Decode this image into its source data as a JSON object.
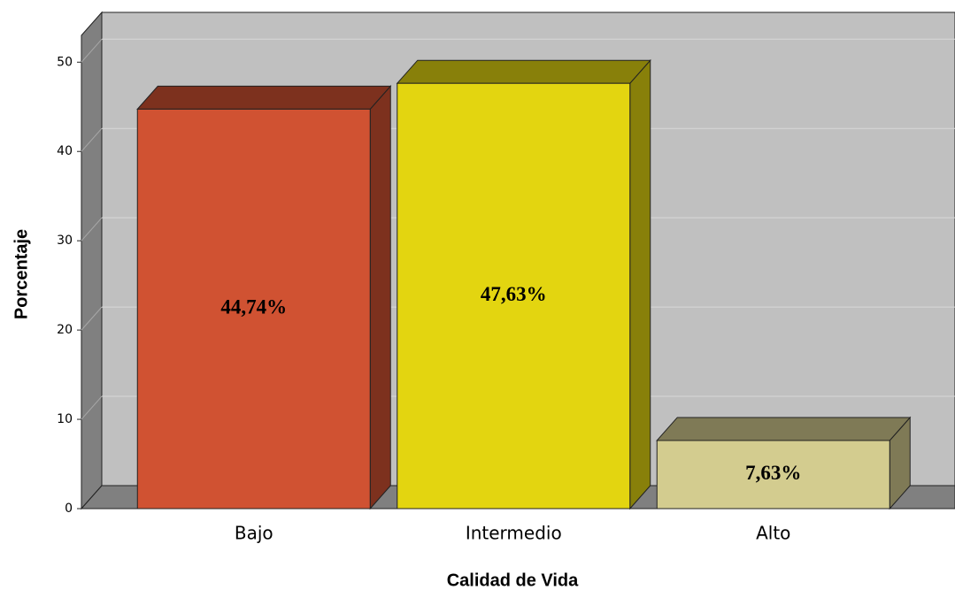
{
  "chart_data": {
    "type": "bar",
    "categories": [
      "Bajo",
      "Intermedio",
      "Alto"
    ],
    "values": [
      44.74,
      47.63,
      7.63
    ],
    "value_labels": [
      "44,74%",
      "47,63%",
      "7,63%"
    ],
    "colors": [
      "#d05232",
      "#e3d510",
      "#d3cc8f"
    ],
    "x_label": "Calidad de Vida",
    "y_label": "Porcentaje",
    "ylim": [
      0,
      53
    ],
    "yticks": [
      0,
      10,
      20,
      30,
      40,
      50
    ],
    "grid": true
  }
}
